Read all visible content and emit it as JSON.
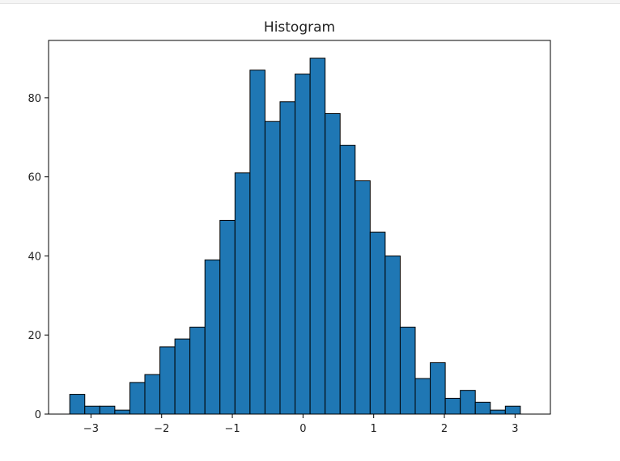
{
  "chart_data": {
    "type": "bar",
    "title": "Histogram",
    "xlabel": "",
    "ylabel": "",
    "xlim": [
      -3.6,
      3.5
    ],
    "ylim": [
      0,
      94.5
    ],
    "bin_start": -3.3,
    "bin_width": 0.2125,
    "counts": [
      5,
      2,
      2,
      1,
      8,
      10,
      17,
      19,
      22,
      39,
      49,
      61,
      87,
      74,
      79,
      86,
      90,
      76,
      68,
      59,
      46,
      40,
      22,
      9,
      13,
      4,
      6,
      3,
      1,
      2
    ],
    "x_ticks": [
      -3,
      -2,
      -1,
      0,
      1,
      2,
      3
    ],
    "x_tick_labels": [
      "−3",
      "−2",
      "−1",
      "0",
      "1",
      "2",
      "3"
    ],
    "y_ticks": [
      0,
      20,
      40,
      60,
      80
    ],
    "y_tick_labels": [
      "0",
      "20",
      "40",
      "60",
      "80"
    ],
    "bar_color": "#1f77b4",
    "edge_color": "#000000",
    "grid": false,
    "legend": "none"
  }
}
